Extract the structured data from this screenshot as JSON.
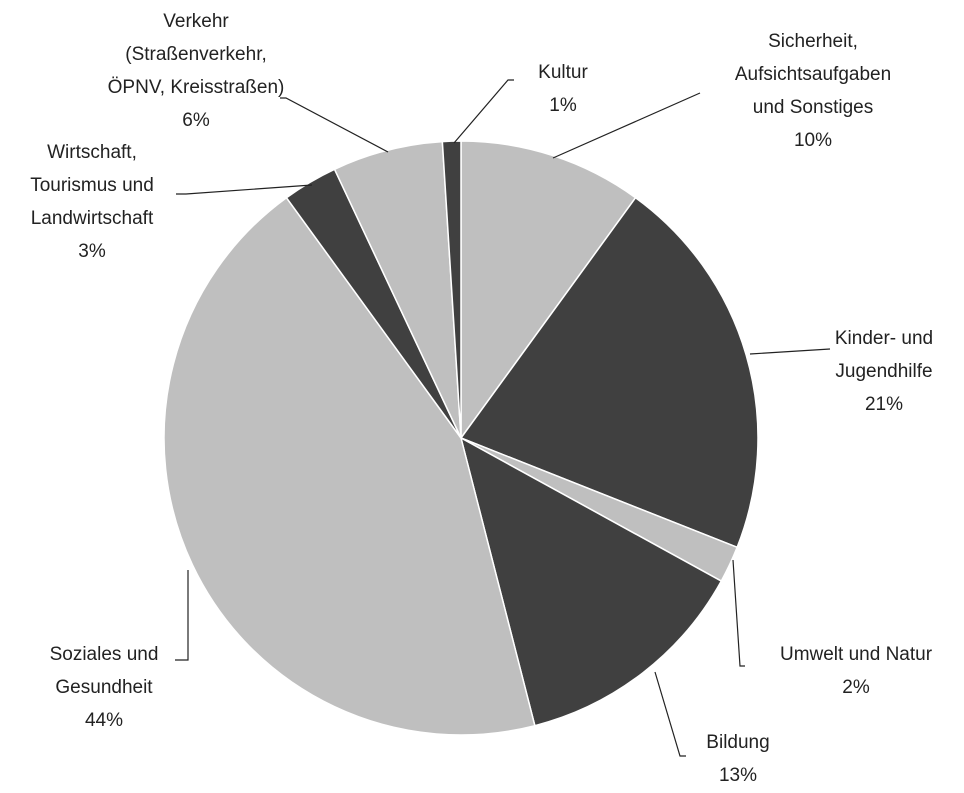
{
  "chart_data": {
    "type": "pie",
    "categories": [
      "Sicherheit,\nAufsichtsaufgaben\nund Sonstiges",
      "Kinder- und\nJugendhilfe",
      "Umwelt und Natur",
      "Bildung",
      "Soziales und\nGesundheit",
      "Wirtschaft,\nTourismus und\nLandwirtschaft",
      "Verkehr\n(Straßenverkehr,\nÖPNV, Kreisstraßen)",
      "Kultur"
    ],
    "values": [
      10,
      21,
      2,
      13,
      44,
      3,
      6,
      1
    ],
    "value_labels": [
      "10%",
      "21%",
      "2%",
      "13%",
      "44%",
      "3%",
      "6%",
      "1%"
    ],
    "colors": [
      "#bfbfbf",
      "#404040",
      "#bfbfbf",
      "#404040",
      "#bfbfbf",
      "#404040",
      "#bfbfbf",
      "#404040"
    ]
  }
}
